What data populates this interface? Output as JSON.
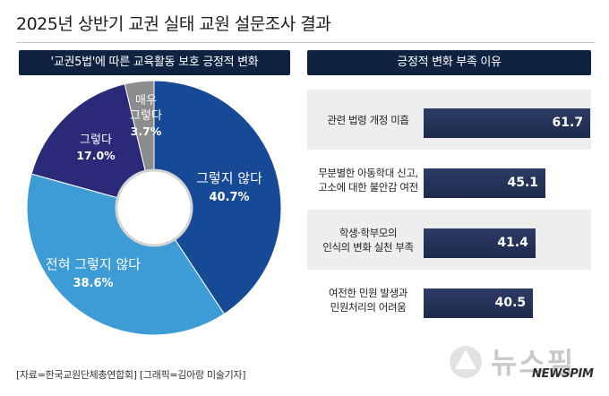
{
  "title": "2025년 상반기 교권 실태 교원 설문조사 결과",
  "left_panel": {
    "header": "'교권5법'에 따른 교육활동 보호 긍정적 변화"
  },
  "right_panel": {
    "header": "긍정적 변화 부족 이유"
  },
  "source": "[자료=한국교원단체총연합회] [그래픽=김아랑 미술기자]",
  "logo": {
    "main": "뉴스핌",
    "sub": "NEWSPIM"
  },
  "colors": {
    "header_bg": "#0f2340",
    "slice_dark": "#174a96",
    "slice_light": "#3d9bd5",
    "slice_navy": "#2a2a78",
    "slice_gray": "#8c8c8c",
    "bar": "#24325a"
  },
  "chart_data": [
    {
      "type": "pie",
      "title": "'교권5법'에 따른 교육활동 보호 긍정적 변화",
      "unit": "%",
      "slices": [
        {
          "label": "그렇지 않다",
          "value": 40.7,
          "color": "#174a96"
        },
        {
          "label": "전혀 그렇지 않다",
          "value": 38.6,
          "color": "#3d9bd5"
        },
        {
          "label": "그렇다",
          "value": 17.0,
          "color": "#2a2a78"
        },
        {
          "label": "매우\n그렇다",
          "value": 3.7,
          "color": "#8c8c8c"
        }
      ],
      "value_labels": [
        "40.7%",
        "38.6%",
        "17.0%",
        "3.7%"
      ]
    },
    {
      "type": "bar",
      "orientation": "horizontal",
      "title": "긍정적 변화 부족 이유",
      "categories": [
        "관련 법령 개정 미흡",
        "무분별한 아동학대 신고,\n고소에 대한 불안감 여전",
        "학생·학부모의\n인식의 변화 실천 부족",
        "여전한 민원 발생과\n민원처리의 어려움"
      ],
      "values": [
        61.7,
        45.1,
        41.4,
        40.5
      ],
      "value_labels": [
        "61.7",
        "45.1",
        "41.4",
        "40.5"
      ]
    }
  ]
}
